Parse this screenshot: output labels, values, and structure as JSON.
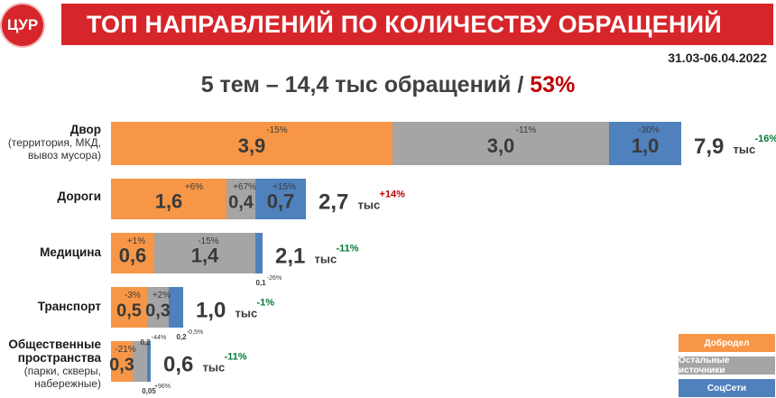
{
  "header": {
    "logo_text": "ЦУР",
    "title": "ТОП НАПРАВЛЕНИЙ ПО КОЛИЧЕСТВУ ОБРАЩЕНИЙ",
    "date_range": "31.03-06.04.2022"
  },
  "subtitle": {
    "text": "5 тем – 14,4 тыс обращений / ",
    "share": "53%"
  },
  "colors": {
    "dobrodel": "#f79646",
    "other": "#a5a5a5",
    "socnet": "#4f81bd",
    "brand": "#d7262b",
    "up": "#c00000",
    "down": "#007a33"
  },
  "legend": [
    {
      "name": "Добродел",
      "color": "#f79646"
    },
    {
      "name": "Остальные источники",
      "color": "#a5a5a5"
    },
    {
      "name": "СоцСети",
      "color": "#4f81bd"
    }
  ],
  "chart_data": {
    "type": "bar",
    "orientation": "horizontal",
    "stacked": true,
    "unit": "тыс",
    "series_names": [
      "Добродел",
      "Остальные источники",
      "СоцСети"
    ],
    "categories": [
      {
        "name": "Двор",
        "sub": "(территория, МКД, вывоз мусора)",
        "sub_lines": [
          "(территория, МКД,",
          "вывоз мусора)"
        ],
        "values": [
          3.9,
          3.0,
          1.0
        ],
        "labels": [
          "3,9",
          "3,0",
          "1,0"
        ],
        "changes": [
          "-15%",
          "-11%",
          "-30%"
        ],
        "total": "7,9",
        "total_change": "-16%"
      },
      {
        "name": "Дороги",
        "sub": "",
        "sub_lines": [],
        "values": [
          1.6,
          0.4,
          0.7
        ],
        "labels": [
          "1,6",
          "0,4",
          "0,7"
        ],
        "changes": [
          "+6%",
          "+67%",
          "+15%"
        ],
        "total": "2,7",
        "total_change": "+14%"
      },
      {
        "name": "Медицина",
        "sub": "",
        "sub_lines": [],
        "values": [
          0.6,
          1.4,
          0.1
        ],
        "labels": [
          "0,6",
          "1,4",
          "0,1"
        ],
        "changes": [
          "+1%",
          "-15%",
          "-26%"
        ],
        "total": "2,1",
        "total_change": "-11%"
      },
      {
        "name": "Транспорт",
        "sub": "",
        "sub_lines": [],
        "values": [
          0.5,
          0.3,
          0.2
        ],
        "labels": [
          "0,5",
          "0,3",
          "0,2"
        ],
        "changes": [
          "-3%",
          "+2%",
          "-0,5%"
        ],
        "total": "1,0",
        "total_change": "-1%"
      },
      {
        "name": "Общественные пространства",
        "sub": "(парки, скверы, набережные)",
        "name_lines": [
          "Общественные",
          "пространства"
        ],
        "sub_lines": [
          "(парки, скверы,",
          "набережные)"
        ],
        "values": [
          0.3,
          0.2,
          0.05
        ],
        "labels": [
          "0,3",
          "0,2",
          "0,05"
        ],
        "changes": [
          "-21%",
          "-44%",
          "+96%"
        ],
        "total": "0,6",
        "total_change": "-11%"
      }
    ]
  }
}
